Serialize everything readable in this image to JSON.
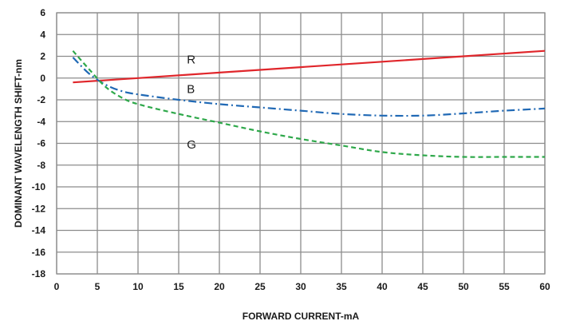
{
  "chart_data": {
    "type": "line",
    "title": "",
    "xlabel": "FORWARD CURRENT-mA",
    "ylabel": "DOMINANT WAVELENGTH SHIFT-nm",
    "xlim": [
      0,
      60
    ],
    "ylim": [
      -18,
      6
    ],
    "x_ticks": [
      0,
      5,
      10,
      15,
      20,
      25,
      30,
      35,
      40,
      45,
      50,
      55,
      60
    ],
    "y_ticks": [
      6,
      4,
      2,
      0,
      -2,
      -4,
      -6,
      -8,
      -10,
      -12,
      -14,
      -16,
      -18
    ],
    "grid": true,
    "series": [
      {
        "name": "R",
        "color": "#e0262b",
        "line_style": "solid",
        "label_at": [
          16,
          1.7
        ],
        "points": [
          [
            2,
            -0.4
          ],
          [
            10,
            0.0
          ],
          [
            20,
            0.5
          ],
          [
            30,
            1.0
          ],
          [
            40,
            1.5
          ],
          [
            50,
            2.0
          ],
          [
            60,
            2.5
          ]
        ]
      },
      {
        "name": "B",
        "color": "#2069b5",
        "line_style": "dash-dot",
        "label_at": [
          16,
          -1.0
        ],
        "points": [
          [
            2,
            1.9
          ],
          [
            4,
            0.4
          ],
          [
            6,
            -0.6
          ],
          [
            8,
            -1.2
          ],
          [
            10,
            -1.5
          ],
          [
            15,
            -2.0
          ],
          [
            20,
            -2.4
          ],
          [
            25,
            -2.7
          ],
          [
            30,
            -3.0
          ],
          [
            35,
            -3.3
          ],
          [
            40,
            -3.45
          ],
          [
            45,
            -3.45
          ],
          [
            50,
            -3.25
          ],
          [
            55,
            -3.0
          ],
          [
            60,
            -2.8
          ]
        ]
      },
      {
        "name": "G",
        "color": "#2ea84a",
        "line_style": "dashed",
        "label_at": [
          16,
          -6.1
        ],
        "points": [
          [
            2,
            2.5
          ],
          [
            4,
            0.8
          ],
          [
            6,
            -0.8
          ],
          [
            8,
            -1.8
          ],
          [
            10,
            -2.4
          ],
          [
            15,
            -3.3
          ],
          [
            20,
            -4.1
          ],
          [
            25,
            -4.9
          ],
          [
            30,
            -5.6
          ],
          [
            35,
            -6.2
          ],
          [
            40,
            -6.8
          ],
          [
            45,
            -7.1
          ],
          [
            50,
            -7.25
          ],
          [
            55,
            -7.25
          ],
          [
            60,
            -7.25
          ]
        ]
      }
    ]
  }
}
